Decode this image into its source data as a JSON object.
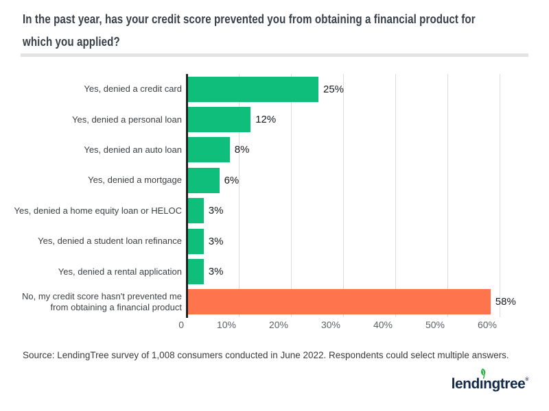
{
  "page": {
    "title_line1": "In the past year, has your credit score prevented you from obtaining a financial product for",
    "title_line2": "which you applied?",
    "source": "Source: LendingTree survey of 1,008 consumers conducted in June 2022. Respondents could select multiple answers.",
    "logo": {
      "full_text": "lendingtree",
      "part_before_leaf": "lend",
      "leaf_letter": "ı",
      "part_after_leaf": "ngtree",
      "registered_mark": "®",
      "text_color": "#152a4a",
      "leaf_color": "#2fb44b"
    }
  },
  "chart_data": {
    "type": "bar",
    "orientation": "horizontal",
    "title": "In the past year, has your credit score prevented you from obtaining a financial product for which you applied?",
    "categories": [
      "Yes, denied a credit card",
      "Yes, denied a personal loan",
      "Yes, denied an auto loan",
      "Yes, denied a mortgage",
      "Yes, denied a home equity loan or HELOC",
      "Yes, denied a student loan refinance",
      "Yes, denied a rental application",
      "No, my credit score hasn't prevented me from obtaining a financial product"
    ],
    "values": [
      25,
      12,
      8,
      6,
      3,
      3,
      3,
      58
    ],
    "value_labels": [
      "25%",
      "12%",
      "8%",
      "6%",
      "3%",
      "3%",
      "3%",
      "58%"
    ],
    "bar_colors": [
      "#0fbe7a",
      "#0fbe7a",
      "#0fbe7a",
      "#0fbe7a",
      "#0fbe7a",
      "#0fbe7a",
      "#0fbe7a",
      "#fd744d"
    ],
    "x_ticks": [
      {
        "label": "0",
        "value": 0
      },
      {
        "label": "10%",
        "value": 10
      },
      {
        "label": "20%",
        "value": 20
      },
      {
        "label": "30%",
        "value": 30
      },
      {
        "label": "40%",
        "value": 40
      },
      {
        "label": "50%",
        "value": 50
      },
      {
        "label": "60%",
        "value": 60
      }
    ],
    "xlim": [
      0,
      60
    ],
    "grid": "vertical",
    "legend": "none",
    "colors": {
      "bar_green": "#0fbe7a",
      "bar_orange": "#fd744d",
      "axis_line": "#1f1f1f",
      "gridline": "#dcdcdc",
      "tick_text": "#5c6066",
      "value_text": "#15181c",
      "category_text": "#3d4043"
    }
  }
}
